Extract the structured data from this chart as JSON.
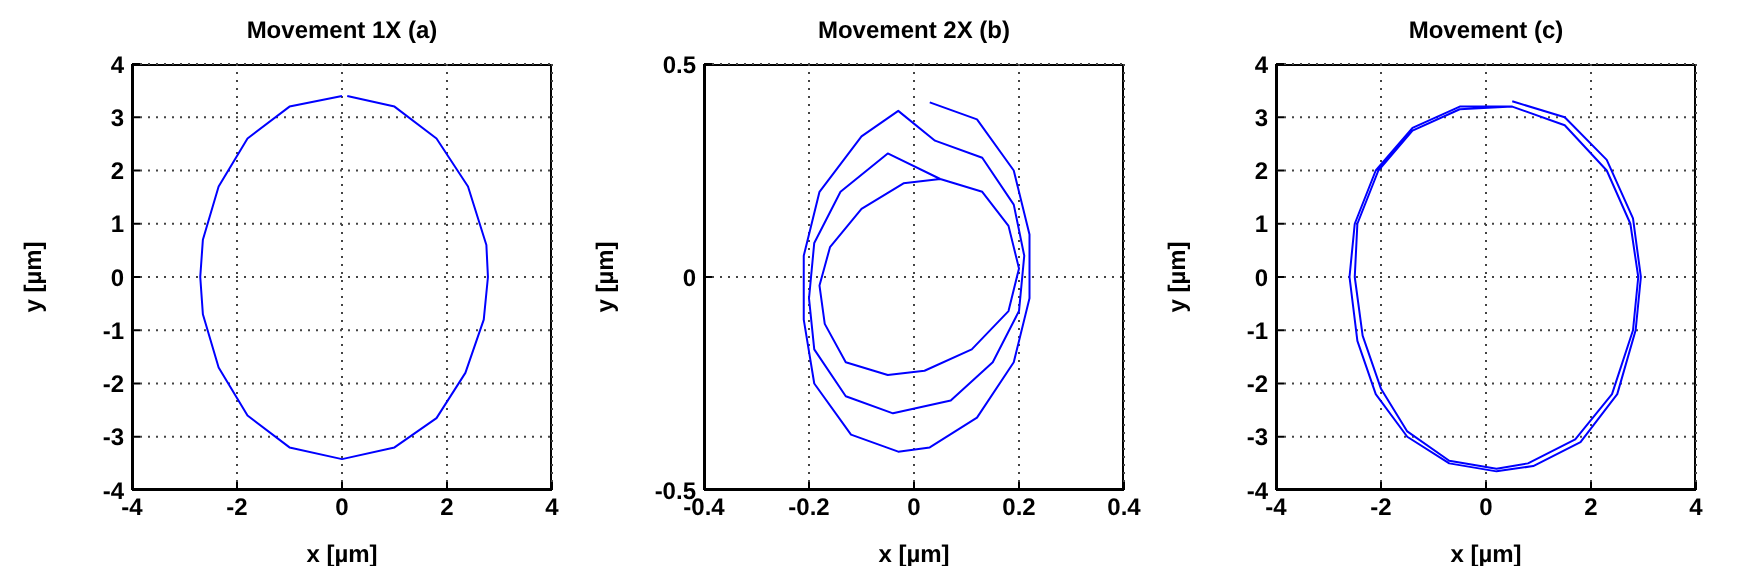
{
  "chart_data": [
    {
      "type": "line",
      "title": "Movement 1X (a)",
      "xlabel": "x [µm]",
      "ylabel": "y [µm]",
      "xlim": [
        -4,
        4
      ],
      "ylim": [
        -4,
        4
      ],
      "xticks": [
        -4,
        -2,
        0,
        2,
        4
      ],
      "yticks": [
        -4,
        -3,
        -2,
        -1,
        0,
        1,
        2,
        3,
        4
      ],
      "grid": true,
      "marker": "none",
      "series": [
        {
          "color": "#0000ff",
          "x": [
            0.1,
            1,
            1.8,
            2.4,
            2.75,
            2.78,
            2.7,
            2.35,
            1.8,
            1,
            0,
            -1,
            -1.8,
            -2.35,
            -2.65,
            -2.7,
            -2.65,
            -2.35,
            -1.8,
            -1,
            0
          ],
          "values": [
            3.4,
            3.2,
            2.6,
            1.7,
            0.6,
            0,
            -0.8,
            -1.8,
            -2.65,
            -3.2,
            -3.42,
            -3.2,
            -2.6,
            -1.7,
            -0.7,
            0,
            0.7,
            1.7,
            2.6,
            3.2,
            3.4
          ]
        }
      ]
    },
    {
      "type": "line",
      "title": "Movement 2X (b)",
      "xlabel": "x [µm]",
      "ylabel": "y [µm]",
      "xlim": [
        -0.4,
        0.4
      ],
      "ylim": [
        -0.5,
        0.5
      ],
      "xticks": [
        -0.4,
        -0.2,
        0,
        0.2,
        0.4
      ],
      "yticks": [
        -0.5,
        0,
        0.5
      ],
      "grid": true,
      "marker": "none",
      "series": [
        {
          "color": "#0000ff",
          "x": [
            0.03,
            0.12,
            0.19,
            0.22,
            0.22,
            0.19,
            0.12,
            0.03,
            -0.03,
            -0.12,
            -0.19,
            -0.21,
            -0.21,
            -0.18,
            -0.1,
            -0.03,
            0.04,
            0.13,
            0.19,
            0.21,
            0.2,
            0.15,
            0.07,
            -0.04,
            -0.13,
            -0.19,
            -0.2,
            -0.19,
            -0.14,
            -0.05,
            0.05,
            0.13,
            0.18,
            0.2,
            0.18,
            0.11,
            0.02,
            -0.05,
            -0.13,
            -0.17,
            -0.18,
            -0.16,
            -0.1,
            -0.02,
            0.05
          ],
          "values": [
            0.41,
            0.37,
            0.25,
            0.1,
            -0.05,
            -0.2,
            -0.33,
            -0.4,
            -0.41,
            -0.37,
            -0.25,
            -0.1,
            0.05,
            0.2,
            0.33,
            0.39,
            0.32,
            0.28,
            0.17,
            0.05,
            -0.08,
            -0.2,
            -0.29,
            -0.32,
            -0.28,
            -0.17,
            -0.05,
            0.08,
            0.2,
            0.29,
            0.23,
            0.2,
            0.12,
            0.02,
            -0.08,
            -0.17,
            -0.22,
            -0.23,
            -0.2,
            -0.11,
            -0.02,
            0.07,
            0.16,
            0.22,
            0.23
          ]
        }
      ]
    },
    {
      "type": "line",
      "title": "Movement (c)",
      "xlabel": "x [µm]",
      "ylabel": "y [µm]",
      "xlim": [
        -4,
        4
      ],
      "ylim": [
        -4,
        4
      ],
      "xticks": [
        -4,
        -2,
        0,
        2,
        4
      ],
      "yticks": [
        -4,
        -3,
        -2,
        -1,
        0,
        1,
        2,
        3,
        4
      ],
      "grid": true,
      "marker": "none",
      "series": [
        {
          "color": "#0000ff",
          "x": [
            0.5,
            1.5,
            2.3,
            2.8,
            2.95,
            2.85,
            2.5,
            1.8,
            0.9,
            0.2,
            -0.7,
            -1.5,
            -2.1,
            -2.45,
            -2.6,
            -2.5,
            -2.1,
            -1.4,
            -0.5,
            0.5,
            1.5,
            2.3,
            2.75,
            2.9,
            2.8,
            2.4,
            1.7,
            0.8,
            0.2,
            -0.7,
            -1.5,
            -2,
            -2.35,
            -2.5,
            -2.45,
            -2.05,
            -1.4,
            -0.5,
            0.5
          ],
          "values": [
            3.3,
            3,
            2.2,
            1.1,
            0,
            -1,
            -2.2,
            -3.1,
            -3.55,
            -3.65,
            -3.5,
            -3,
            -2.2,
            -1.2,
            0,
            1,
            2,
            2.8,
            3.2,
            3.2,
            2.85,
            2,
            1,
            0,
            -1,
            -2.2,
            -3.05,
            -3.5,
            -3.6,
            -3.45,
            -2.9,
            -2.1,
            -1.1,
            0,
            1,
            2,
            2.75,
            3.15,
            3.2
          ]
        }
      ]
    }
  ]
}
